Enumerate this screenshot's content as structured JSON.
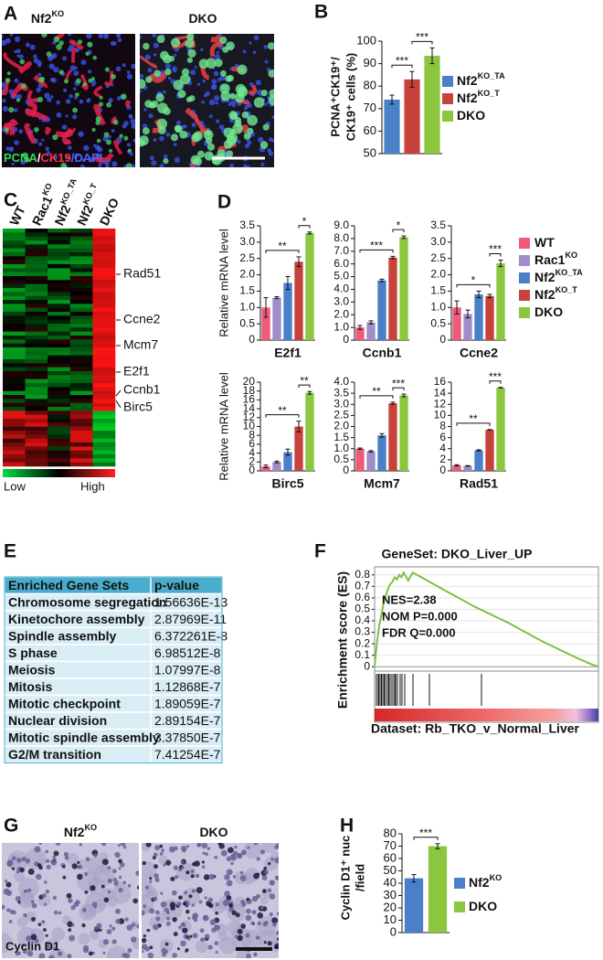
{
  "figure": {
    "panel_letters": [
      "A",
      "B",
      "C",
      "D",
      "E",
      "F",
      "G",
      "H"
    ],
    "a": {
      "image_titles": [
        {
          "text": "Nf2",
          "sup": "KO"
        },
        {
          "text": "DKO"
        }
      ],
      "stain_label": [
        {
          "text": "PCNA",
          "color": "#33dd55"
        },
        {
          "text": "/",
          "color": "#ffffff"
        },
        {
          "text": "CK19",
          "color": "#ff3344"
        },
        {
          "text": "/DAPI",
          "color": "#4466ff"
        }
      ]
    },
    "c": {
      "columns": [
        {
          "text": "WT"
        },
        {
          "text": "Rac1",
          "sup": "KO"
        },
        {
          "text": "Nf2",
          "sup": "KO_TA"
        },
        {
          "text": "Nf2",
          "sup": "KO_T"
        },
        {
          "text": "DKO"
        }
      ],
      "genes": [
        "Rad51",
        "Ccne2",
        "Mcm7",
        "E2f1",
        "Ccnb1",
        "Birc5"
      ],
      "scale": [
        "Low",
        "High"
      ]
    },
    "d_legend": [
      {
        "name": "WT",
        "color": "#ee5a78"
      },
      {
        "name": "Rac1",
        "sup": "KO",
        "color": "#a08cc8"
      },
      {
        "name": "Nf2",
        "sup": "KO_TA",
        "color": "#4a80c8"
      },
      {
        "name": "Nf2",
        "sup": "KO_T",
        "color": "#c8423c"
      },
      {
        "name": "DKO",
        "color": "#8cc63e"
      }
    ],
    "e": {
      "header": [
        "Enriched Gene Sets",
        "p-value"
      ],
      "rows": [
        [
          "Chromosome segregation",
          "1.56636E-13"
        ],
        [
          "Kinetochore assembly",
          "2.87969E-11"
        ],
        [
          "Spindle assembly",
          "6.372261E-8"
        ],
        [
          "S phase",
          "6.98512E-8"
        ],
        [
          "Meiosis",
          "1.07997E-8"
        ],
        [
          "Mitosis",
          "1.12868E-7"
        ],
        [
          "Mitotic checkpoint",
          "1.89059E-7"
        ],
        [
          "Nuclear division",
          "2.89154E-7"
        ],
        [
          "Mitotic spindle assembly",
          "3.37850E-7"
        ],
        [
          "G2/M transition",
          "7.41254E-7"
        ]
      ]
    },
    "g": {
      "image_titles": [
        {
          "text": "Nf2",
          "sup": "KO"
        },
        {
          "text": "DKO"
        }
      ],
      "stain_label": "Cyclin D1"
    }
  },
  "chart_data": [
    {
      "type": "bar",
      "ylabel": [
        "PCNA⁺CK19⁺/",
        "CK19⁺ cells (%)"
      ],
      "series": [
        {
          "name": "Nf2",
          "sup": "KO_TA",
          "color": "#4a80c8",
          "values": [
            74
          ],
          "errors": [
            2
          ]
        },
        {
          "name": "Nf2",
          "sup": "KO_T",
          "color": "#c8423c",
          "values": [
            83
          ],
          "errors": [
            3.5
          ]
        },
        {
          "name": "DKO",
          "color": "#8cc63e",
          "values": [
            93.5
          ],
          "errors": [
            3.5
          ]
        }
      ],
      "ylim": [
        50,
        100
      ],
      "yticks": [
        50,
        60,
        70,
        80,
        90,
        100
      ],
      "significance": [
        "***",
        "***"
      ]
    },
    {
      "type": "bar",
      "x_label": "E2f1",
      "ylabel": "Relative mRNA level",
      "values": [
        1.0,
        1.3,
        1.75,
        2.4,
        3.28
      ],
      "errors": [
        0.3,
        0.03,
        0.2,
        0.15,
        0.03
      ],
      "ylim": [
        0,
        3.5
      ],
      "yticks": [
        0,
        0.5,
        {
          "value": 1,
          "label": "1.0"
        },
        1.5,
        {
          "value": 2,
          "label": "2.0"
        },
        2.5,
        {
          "value": 3,
          "label": "3.0"
        },
        3.5
      ],
      "significance": [
        "**",
        "*"
      ]
    },
    {
      "type": "bar",
      "x_label": "Ccnb1",
      "values": [
        1.0,
        1.4,
        4.7,
        6.5,
        8.1
      ],
      "errors": [
        0.15,
        0.12,
        0.1,
        0.1,
        0.1
      ],
      "ylim": [
        0,
        9
      ],
      "yticks": [
        0,
        {
          "value": 1,
          "label": "1.0"
        },
        {
          "value": 2,
          "label": "2.0"
        },
        {
          "value": 3,
          "label": "3.0"
        },
        {
          "value": 4,
          "label": "4.0"
        },
        {
          "value": 5,
          "label": "5.0"
        },
        {
          "value": 6,
          "label": "6.0"
        },
        {
          "value": 7,
          "label": "7.0"
        },
        {
          "value": 8,
          "label": "8.0"
        },
        {
          "value": 9,
          "label": "9.0"
        }
      ],
      "significance": [
        "***",
        "*"
      ]
    },
    {
      "type": "bar",
      "x_label": "Ccne2",
      "values": [
        1.0,
        0.8,
        1.4,
        1.35,
        2.35
      ],
      "errors": [
        0.2,
        0.12,
        0.1,
        0.05,
        0.1
      ],
      "ylim": [
        0,
        3.5
      ],
      "yticks": [
        0,
        0.5,
        {
          "value": 1,
          "label": "1.0"
        },
        1.5,
        {
          "value": 2,
          "label": "2.0"
        },
        2.5,
        {
          "value": 3,
          "label": "3.0"
        },
        3.5
      ],
      "significance": [
        "*",
        "***"
      ]
    },
    {
      "type": "bar",
      "x_label": "Birc5",
      "ylabel": "Relative mRNA level",
      "values": [
        1.0,
        2.0,
        4.2,
        10,
        17.6
      ],
      "errors": [
        0.3,
        0.2,
        0.7,
        1.2,
        0.3
      ],
      "ylim": [
        0,
        20
      ],
      "yticks": [
        0,
        2,
        4,
        6,
        8,
        10,
        12,
        14,
        16,
        18,
        20
      ],
      "significance": [
        "**",
        "**"
      ]
    },
    {
      "type": "bar",
      "x_label": "Mcm7",
      "values": [
        1.0,
        0.88,
        1.6,
        3.05,
        3.4
      ],
      "errors": [
        0.03,
        0.03,
        0.08,
        0.05,
        0.06
      ],
      "ylim": [
        0,
        4
      ],
      "yticks": [
        0,
        0.5,
        {
          "value": 1,
          "label": "1.0"
        },
        1.5,
        {
          "value": 2,
          "label": "2.0"
        },
        2.5,
        {
          "value": 3,
          "label": "3.0"
        },
        3.5,
        {
          "value": 4,
          "label": "4.0"
        }
      ],
      "significance": [
        "**",
        "***"
      ]
    },
    {
      "type": "bar",
      "x_label": "Rad51",
      "values": [
        1.0,
        0.9,
        3.7,
        7.4,
        15
      ],
      "errors": [
        0.1,
        0.05,
        0.1,
        0.05,
        0.05
      ],
      "ylim": [
        0,
        16
      ],
      "yticks": [
        0,
        2,
        4,
        6,
        8,
        10,
        12,
        14,
        16
      ],
      "significance": [
        "**",
        "***"
      ]
    },
    {
      "type": "line",
      "title": "GeneSet: DKO_Liver_UP",
      "ylabel": "Enrichment score (ES)",
      "color": "#7dc242",
      "x": [
        0,
        1,
        2,
        3,
        4,
        5,
        6,
        7,
        8,
        9,
        10,
        11,
        12,
        13,
        15,
        17,
        19,
        30,
        45,
        60,
        75,
        90,
        97,
        100
      ],
      "values": [
        0,
        0.2,
        0.35,
        0.45,
        0.55,
        0.62,
        0.68,
        0.72,
        0.74,
        0.78,
        0.76,
        0.8,
        0.78,
        0.82,
        0.75,
        0.82,
        0.8,
        0.68,
        0.52,
        0.38,
        0.22,
        0.08,
        0.02,
        0
      ],
      "xlim": [
        0,
        100
      ],
      "ylim": [
        -0.03,
        0.87
      ],
      "yticks": [
        0,
        0.1,
        0.2,
        0.3,
        0.4,
        0.5,
        0.6,
        0.7,
        0.8
      ],
      "grid": true,
      "annotations": [
        "NES=2.38",
        "NOM P=0.000",
        "FDR Q=0.000"
      ],
      "footer": "Dataset: Rb_TKO_v_Normal_Liver"
    },
    {
      "type": "bar",
      "ylabel": [
        "Cyclin D1⁺ nuc",
        "/field"
      ],
      "series": [
        {
          "name": "Nf2",
          "sup": "KO",
          "color": "#4a80c8",
          "values": [
            44
          ],
          "errors": [
            3
          ]
        },
        {
          "name": "DKO",
          "color": "#8cc63e",
          "values": [
            70
          ],
          "errors": [
            2
          ]
        }
      ],
      "ylim": [
        0,
        80
      ],
      "yticks": [
        0,
        10,
        20,
        30,
        40,
        50,
        60,
        70,
        80
      ],
      "significance": [
        "***"
      ]
    }
  ]
}
